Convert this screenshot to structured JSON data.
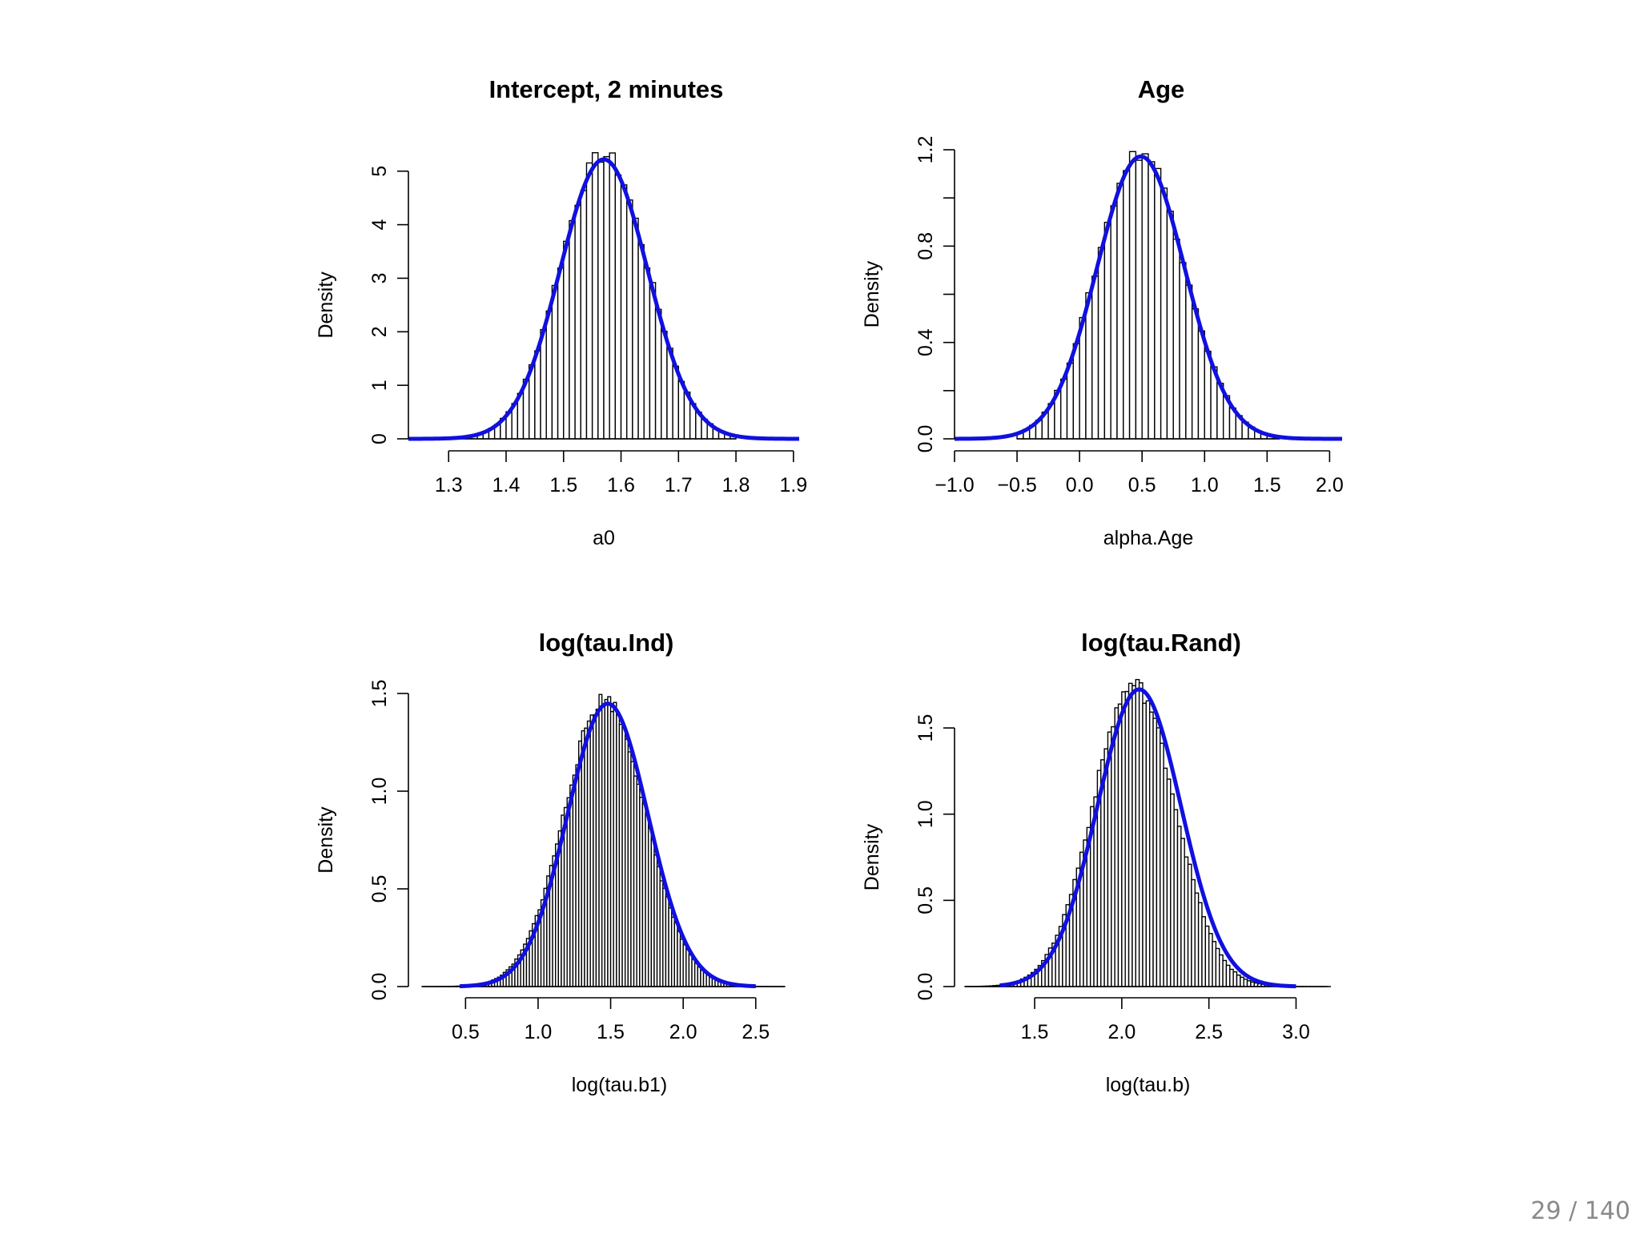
{
  "page": {
    "number_text": "29 / 140"
  },
  "colors": {
    "curve": "#1010e0",
    "bar_fill": "#ffffff",
    "bar_stroke": "#000000",
    "axis": "#000000"
  },
  "panels": [
    {
      "title": "Intercept, 2 minutes",
      "xlabel": "a0",
      "ylabel": "Density",
      "xticks": [
        "1.3",
        "1.4",
        "1.5",
        "1.6",
        "1.7",
        "1.8",
        "1.9"
      ],
      "yticks": [
        "0",
        "1",
        "2",
        "3",
        "4",
        "5"
      ]
    },
    {
      "title": "Age",
      "xlabel": "alpha.Age",
      "ylabel": "Density",
      "xticks": [
        "−1.0",
        "−0.5",
        "0.0",
        "0.5",
        "1.0",
        "1.5",
        "2.0"
      ],
      "yticks": [
        "0.0",
        "0.4",
        "0.8",
        "1.2"
      ]
    },
    {
      "title": "log(tau.Ind)",
      "xlabel": "log(tau.b1)",
      "ylabel": "Density",
      "xticks": [
        "0.5",
        "1.0",
        "1.5",
        "2.0",
        "2.5"
      ],
      "yticks": [
        "0.0",
        "0.5",
        "1.0",
        "1.5"
      ]
    },
    {
      "title": "log(tau.Rand)",
      "xlabel": "log(tau.b)",
      "ylabel": "Density",
      "xticks": [
        "1.5",
        "2.0",
        "2.5",
        "3.0"
      ],
      "yticks": [
        "0.0",
        "0.5",
        "1.0",
        "1.5"
      ]
    }
  ],
  "chart_data": [
    {
      "type": "bar",
      "title": "Intercept, 2 minutes",
      "xlabel": "a0",
      "ylabel": "Density",
      "xlim": [
        1.23,
        1.91
      ],
      "ylim": [
        0,
        5.4
      ],
      "xtick_values": [
        1.3,
        1.4,
        1.5,
        1.6,
        1.7,
        1.8,
        1.9
      ],
      "ytick_values": [
        0,
        1,
        2,
        3,
        4,
        5
      ],
      "histogram": {
        "bin_start": 1.32,
        "bin_end": 1.8,
        "bin_width": 0.01,
        "mean": 1.57,
        "sd": 0.076,
        "peak_density": 5.3
      },
      "series": [
        {
          "name": "",
          "type": "density-curve",
          "mean": 1.57,
          "sd": 0.076,
          "x_range": [
            1.23,
            1.91
          ]
        }
      ]
    },
    {
      "type": "bar",
      "title": "Age",
      "xlabel": "alpha.Age",
      "ylabel": "Density",
      "xlim": [
        -1.0,
        2.1
      ],
      "ylim": [
        0,
        1.2
      ],
      "xtick_values": [
        -1.0,
        -0.5,
        0.0,
        0.5,
        1.0,
        1.5,
        2.0
      ],
      "ytick_values": [
        0.0,
        0.2,
        0.4,
        0.6,
        0.8,
        1.0,
        1.2
      ],
      "histogram": {
        "bin_start": -0.5,
        "bin_end": 1.6,
        "bin_width": 0.05,
        "mean": 0.49,
        "sd": 0.35,
        "peak_density": 1.19
      },
      "series": [
        {
          "name": "",
          "type": "density-curve",
          "mean": 0.49,
          "sd": 0.35,
          "x_range": [
            -1.0,
            2.1
          ]
        }
      ]
    },
    {
      "type": "bar",
      "title": "log(tau.Ind)",
      "xlabel": "log(tau.b1)",
      "ylabel": "Density",
      "xlim": [
        0.2,
        2.7
      ],
      "ylim": [
        0,
        1.5
      ],
      "xtick_values": [
        0.5,
        1.0,
        1.5,
        2.0,
        2.5
      ],
      "ytick_values": [
        0.0,
        0.5,
        1.0,
        1.5
      ],
      "histogram": {
        "bin_start": 0.2,
        "bin_end": 2.7,
        "bin_width": 0.02,
        "mean": 1.46,
        "sd": 0.28,
        "peak_density": 1.47
      },
      "series": [
        {
          "name": "",
          "type": "density-curve",
          "mean": 1.48,
          "sd": 0.278,
          "x_range": [
            0.46,
            2.5
          ]
        }
      ]
    },
    {
      "type": "bar",
      "title": "log(tau.Rand)",
      "xlabel": "log(tau.b)",
      "ylabel": "Density",
      "xlim": [
        1.1,
        3.2
      ],
      "ylim": [
        0,
        1.7
      ],
      "xtick_values": [
        1.5,
        2.0,
        2.5,
        3.0
      ],
      "ytick_values": [
        0.0,
        0.5,
        1.0,
        1.5
      ],
      "histogram": {
        "bin_start": 1.1,
        "bin_end": 3.2,
        "bin_width": 0.02,
        "mean": 2.07,
        "sd": 0.235,
        "peak_density": 1.75
      },
      "series": [
        {
          "name": "",
          "type": "density-curve",
          "mean": 2.1,
          "sd": 0.24,
          "x_range": [
            1.3,
            3.0
          ]
        }
      ]
    }
  ]
}
